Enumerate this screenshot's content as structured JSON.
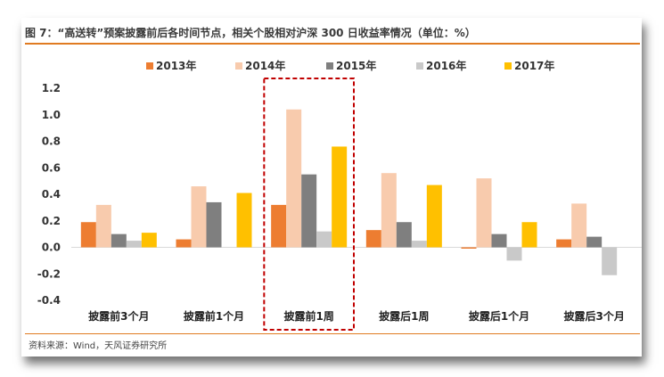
{
  "title": "图 7：“高送转”预案披露前后各时间节点，相关个股相对沪深 300 日收益率情况（单位：%）",
  "source": "资料来源：Wind，天风证券研究所",
  "colors": {
    "accent": "#e07b22",
    "highlight_box": "#c00000"
  },
  "chart_data": {
    "type": "bar",
    "categories": [
      "披露前3个月",
      "披露前1个月",
      "披露前1周",
      "披露后1周",
      "披露后1个月",
      "披露后3个月"
    ],
    "series": [
      {
        "name": "2013年",
        "color": "#ed7d31",
        "values": [
          0.19,
          0.06,
          0.32,
          0.13,
          -0.01,
          0.06
        ]
      },
      {
        "name": "2014年",
        "color": "#f8cbad",
        "values": [
          0.32,
          0.46,
          1.04,
          0.56,
          0.52,
          0.33
        ]
      },
      {
        "name": "2015年",
        "color": "#7f7f7f",
        "values": [
          0.1,
          0.34,
          0.55,
          0.19,
          0.1,
          0.08
        ]
      },
      {
        "name": "2016年",
        "color": "#c9c9c9",
        "values": [
          0.05,
          0.0,
          0.12,
          0.05,
          -0.1,
          -0.21
        ]
      },
      {
        "name": "2017年",
        "color": "#ffc000",
        "values": [
          0.11,
          0.41,
          0.76,
          0.47,
          0.19,
          0.0
        ]
      }
    ],
    "ylim": [
      -0.4,
      1.2
    ],
    "yticks": [
      "1.2",
      "1.0",
      "0.8",
      "0.6",
      "0.4",
      "0.2",
      "0.0",
      "-0.2",
      "-0.4"
    ],
    "ytick_values": [
      1.2,
      1.0,
      0.8,
      0.6,
      0.4,
      0.2,
      0.0,
      -0.2,
      -0.4
    ],
    "grid": false,
    "legend_position": "top",
    "highlighted_category": "披露前1周"
  }
}
